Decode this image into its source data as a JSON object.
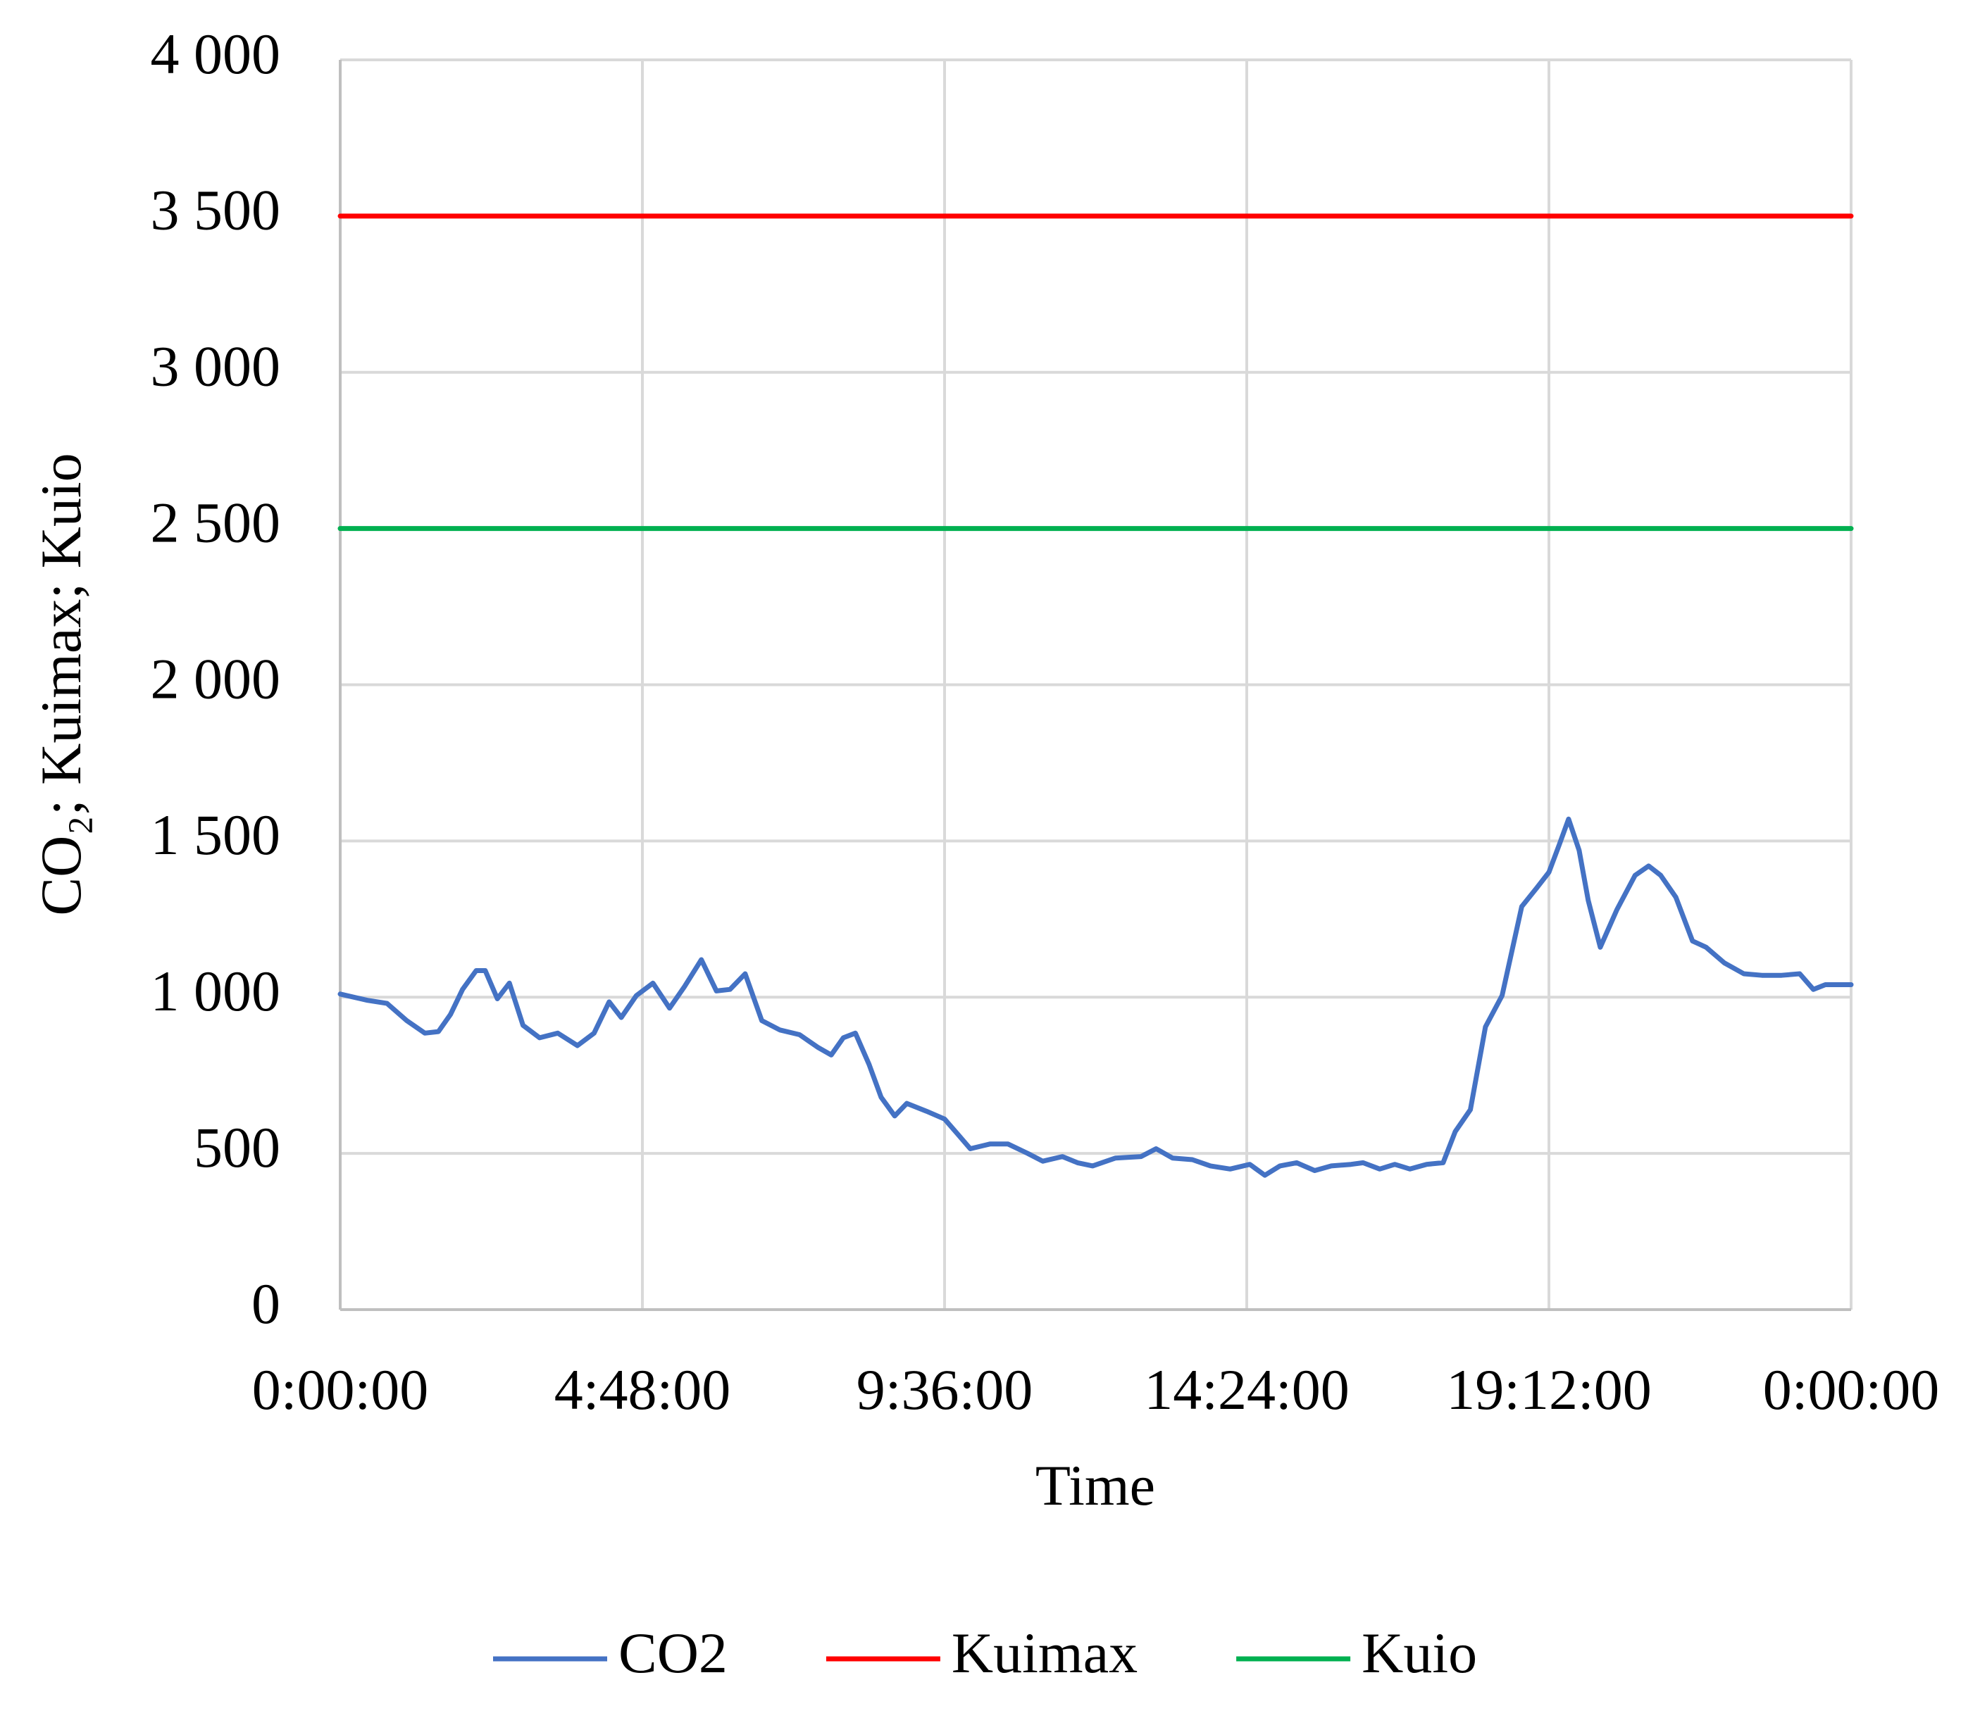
{
  "chart_data": {
    "type": "line",
    "x_label": "Time",
    "y_label": "CO₂; Kuimax; Kuio",
    "xlim": [
      0,
      1
    ],
    "xticks": [
      {
        "value": 0,
        "label": "0:00:00"
      },
      {
        "value": 0.2,
        "label": "4:48:00"
      },
      {
        "value": 0.4,
        "label": "9:36:00"
      },
      {
        "value": 0.6,
        "label": "14:24:00"
      },
      {
        "value": 0.8,
        "label": "19:12:00"
      },
      {
        "value": 1,
        "label": "0:00:00"
      }
    ],
    "ylim": [
      0,
      4000
    ],
    "yticks": [
      0,
      500,
      {
        "value": 1000,
        "label": "1 000"
      },
      {
        "value": 1500,
        "label": "1 500"
      },
      {
        "value": 2000,
        "label": "2 000"
      },
      {
        "value": 2500,
        "label": "2 500"
      },
      {
        "value": 3000,
        "label": "3 000"
      },
      {
        "value": 3500,
        "label": "3 500"
      },
      {
        "value": 4000,
        "label": "4 000"
      }
    ],
    "grid": true,
    "legend": "bottom",
    "series": [
      {
        "name": "CO2",
        "color": "#4472c4",
        "x": [
          0,
          0.018,
          0.031,
          0.044,
          0.056,
          0.065,
          0.073,
          0.081,
          0.09,
          0.096,
          0.104,
          0.112,
          0.121,
          0.132,
          0.144,
          0.157,
          0.168,
          0.178,
          0.186,
          0.196,
          0.207,
          0.218,
          0.228,
          0.239,
          0.249,
          0.258,
          0.268,
          0.279,
          0.291,
          0.304,
          0.316,
          0.325,
          0.333,
          0.341,
          0.35,
          0.358,
          0.367,
          0.375,
          0.388,
          0.4,
          0.409,
          0.417,
          0.43,
          0.442,
          0.455,
          0.465,
          0.478,
          0.488,
          0.498,
          0.513,
          0.53,
          0.54,
          0.551,
          0.564,
          0.576,
          0.589,
          0.602,
          0.612,
          0.622,
          0.633,
          0.645,
          0.656,
          0.669,
          0.677,
          0.688,
          0.698,
          0.708,
          0.719,
          0.73,
          0.738,
          0.748,
          0.758,
          0.769,
          0.782,
          0.792,
          0.8,
          0.807,
          0.813,
          0.82,
          0.826,
          0.834,
          0.845,
          0.857,
          0.866,
          0.874,
          0.884,
          0.895,
          0.904,
          0.916,
          0.929,
          0.941,
          0.954,
          0.966,
          0.975,
          0.983,
          1
        ],
        "values": [
          1010,
          990,
          980,
          925,
          885,
          890,
          945,
          1025,
          1085,
          1085,
          995,
          1045,
          910,
          870,
          885,
          845,
          885,
          985,
          935,
          1005,
          1045,
          965,
          1035,
          1120,
          1020,
          1025,
          1075,
          925,
          895,
          880,
          840,
          815,
          870,
          885,
          785,
          680,
          620,
          660,
          635,
          610,
          560,
          515,
          530,
          530,
          500,
          475,
          490,
          470,
          460,
          485,
          490,
          515,
          485,
          480,
          460,
          450,
          465,
          430,
          460,
          470,
          445,
          460,
          465,
          470,
          450,
          465,
          450,
          465,
          470,
          570,
          640,
          905,
          1005,
          1290,
          1350,
          1400,
          1490,
          1570,
          1470,
          1310,
          1160,
          1280,
          1390,
          1420,
          1390,
          1320,
          1180,
          1160,
          1110,
          1075,
          1070,
          1070,
          1075,
          1025,
          1040,
          1040
        ]
      },
      {
        "name": "Kuimax",
        "color": "#ff0000",
        "x": [
          0,
          1
        ],
        "values": [
          3500,
          3500
        ]
      },
      {
        "name": "Kuio",
        "color": "#00b050",
        "x": [
          0,
          1
        ],
        "values": [
          2500,
          2500
        ]
      }
    ]
  }
}
